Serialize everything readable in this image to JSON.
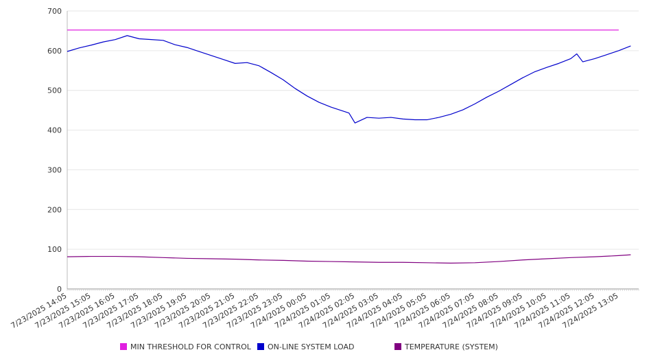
{
  "chart_data": {
    "type": "line",
    "title": "",
    "xlabel": "",
    "ylabel": "",
    "ylim": [
      0,
      700
    ],
    "yticks": [
      0,
      100,
      200,
      300,
      400,
      500,
      600,
      700
    ],
    "grid": true,
    "legend_position": "bottom",
    "categories": [
      "7/23/2025 14:05",
      "7/23/2025 15:05",
      "7/23/2025 16:05",
      "7/23/2025 17:05",
      "7/23/2025 18:05",
      "7/23/2025 19:05",
      "7/23/2025 20:05",
      "7/23/2025 21:05",
      "7/23/2025 22:05",
      "7/23/2025 23:05",
      "7/24/2025 00:05",
      "7/24/2025 01:05",
      "7/24/2025 02:05",
      "7/24/2025 03:05",
      "7/24/2025 04:05",
      "7/24/2025 05:05",
      "7/24/2025 06:05",
      "7/24/2025 07:05",
      "7/24/2025 08:05",
      "7/24/2025 09:05",
      "7/24/2025 10:05",
      "7/24/2025 11:05",
      "7/24/2025 12:05",
      "7/24/2025 13:05"
    ],
    "series": [
      {
        "name": "MIN THRESHOLD FOR CONTROL",
        "color": "#e020e0",
        "x": [
          "7/23/2025 14:05",
          "7/24/2025 13:05"
        ],
        "values": [
          652,
          652
        ]
      },
      {
        "name": "ON-LINE SYSTEM LOAD",
        "color": "#0000cc",
        "x": [
          "7/23/2025 14:05",
          "7/23/2025 14:35",
          "7/23/2025 15:05",
          "7/23/2025 15:35",
          "7/23/2025 16:05",
          "7/23/2025 16:35",
          "7/23/2025 17:05",
          "7/23/2025 17:35",
          "7/23/2025 18:05",
          "7/23/2025 18:35",
          "7/23/2025 19:05",
          "7/23/2025 19:35",
          "7/23/2025 20:05",
          "7/23/2025 20:35",
          "7/23/2025 21:05",
          "7/23/2025 21:35",
          "7/23/2025 22:05",
          "7/23/2025 22:35",
          "7/23/2025 23:05",
          "7/23/2025 23:35",
          "7/24/2025 00:05",
          "7/24/2025 00:35",
          "7/24/2025 01:05",
          "7/24/2025 01:35",
          "7/24/2025 01:50",
          "7/24/2025 02:05",
          "7/24/2025 02:35",
          "7/24/2025 03:05",
          "7/24/2025 03:35",
          "7/24/2025 04:05",
          "7/24/2025 04:35",
          "7/24/2025 05:05",
          "7/24/2025 05:35",
          "7/24/2025 06:05",
          "7/24/2025 06:35",
          "7/24/2025 07:05",
          "7/24/2025 07:35",
          "7/24/2025 08:05",
          "7/24/2025 08:35",
          "7/24/2025 09:05",
          "7/24/2025 09:35",
          "7/24/2025 10:05",
          "7/24/2025 10:35",
          "7/24/2025 11:05",
          "7/24/2025 11:20",
          "7/24/2025 11:35",
          "7/24/2025 12:05",
          "7/24/2025 12:35",
          "7/24/2025 13:05",
          "7/24/2025 13:35"
        ],
        "values": [
          598,
          607,
          614,
          622,
          628,
          638,
          630,
          628,
          626,
          615,
          608,
          598,
          588,
          578,
          568,
          570,
          562,
          545,
          527,
          505,
          486,
          470,
          458,
          448,
          443,
          418,
          432,
          430,
          432,
          428,
          426,
          426,
          432,
          440,
          451,
          466,
          483,
          498,
          515,
          532,
          547,
          558,
          568,
          580,
          592,
          572,
          580,
          590,
          600,
          612
        ]
      },
      {
        "name": "TEMPERATURE (SYSTEM)",
        "color": "#800080",
        "x": [
          "7/23/2025 14:05",
          "7/23/2025 15:05",
          "7/23/2025 16:05",
          "7/23/2025 17:05",
          "7/23/2025 18:05",
          "7/23/2025 19:05",
          "7/23/2025 20:05",
          "7/23/2025 21:05",
          "7/23/2025 22:05",
          "7/23/2025 23:05",
          "7/24/2025 00:05",
          "7/24/2025 01:05",
          "7/24/2025 02:05",
          "7/24/2025 03:05",
          "7/24/2025 04:05",
          "7/24/2025 05:05",
          "7/24/2025 06:05",
          "7/24/2025 07:05",
          "7/24/2025 08:05",
          "7/24/2025 09:05",
          "7/24/2025 10:05",
          "7/24/2025 11:05",
          "7/24/2025 12:05",
          "7/24/2025 13:05",
          "7/24/2025 13:35"
        ],
        "values": [
          81,
          82,
          82,
          81,
          79,
          77,
          76,
          75,
          73,
          72,
          70,
          69,
          68,
          67,
          67,
          66,
          65,
          66,
          69,
          73,
          76,
          79,
          81,
          84,
          86
        ]
      }
    ]
  }
}
